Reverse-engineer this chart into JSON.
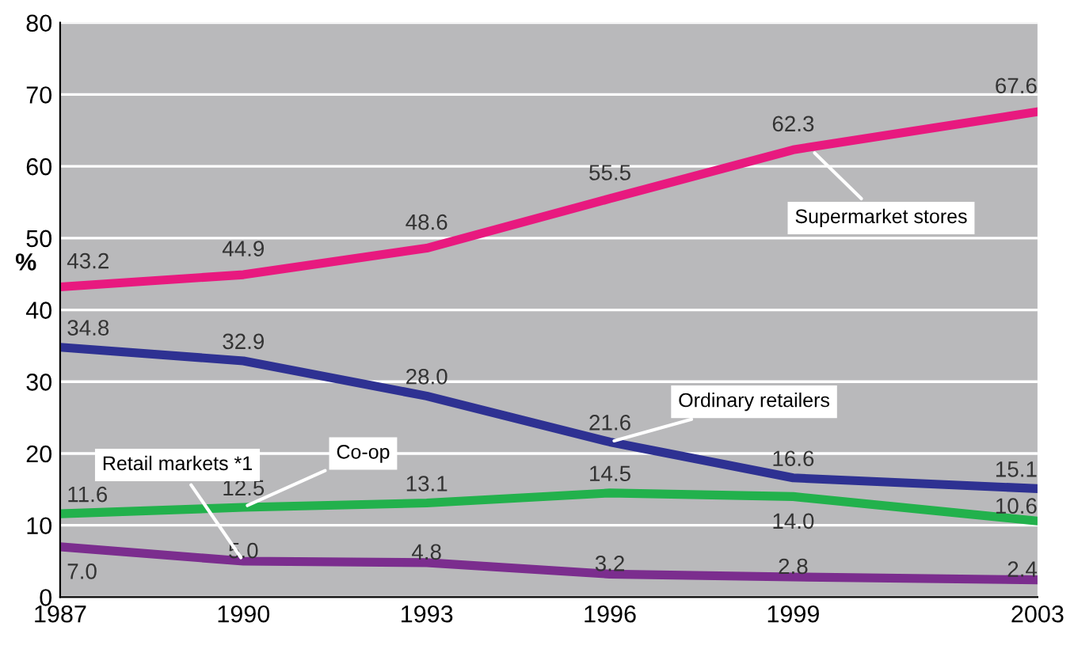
{
  "chart_data": {
    "type": "line",
    "ylabel": "%",
    "x": [
      1987,
      1990,
      1993,
      1996,
      1999,
      2003
    ],
    "xlim": [
      1987,
      2003
    ],
    "xticks": [
      1987,
      1990,
      1993,
      1996,
      1999,
      2003
    ],
    "ylim": [
      0,
      80
    ],
    "yticks": [
      0,
      10,
      20,
      30,
      40,
      50,
      60,
      70,
      80
    ],
    "grid": "y",
    "marker": "none",
    "line_style": "solid",
    "series": [
      {
        "name": "Supermarket stores",
        "color": "#e8197f",
        "values": [
          43.2,
          44.9,
          48.6,
          55.5,
          62.3,
          67.6
        ],
        "value_labels": [
          "43.2",
          "44.9",
          "48.6",
          "55.5",
          "62.3",
          "67.6"
        ]
      },
      {
        "name": "Ordinary retailers",
        "color": "#2e3192",
        "values": [
          34.8,
          32.9,
          28.0,
          21.6,
          16.6,
          15.1
        ],
        "value_labels": [
          "34.8",
          "32.9",
          "28.0",
          "21.6",
          "16.6",
          "15.1"
        ]
      },
      {
        "name": "Co-op",
        "color": "#22b14c",
        "values": [
          11.6,
          12.5,
          13.1,
          14.5,
          14.0,
          10.6
        ],
        "value_labels": [
          "11.6",
          "12.5",
          "13.1",
          "14.5",
          "14.0",
          "10.6"
        ]
      },
      {
        "name": "Retail markets *1",
        "color": "#7b2d8e",
        "values": [
          7.0,
          5.0,
          4.8,
          3.2,
          2.8,
          2.4
        ],
        "value_labels": [
          "7.0",
          "5.0",
          "4.8",
          "3.2",
          "2.8",
          "2.4"
        ]
      }
    ]
  }
}
